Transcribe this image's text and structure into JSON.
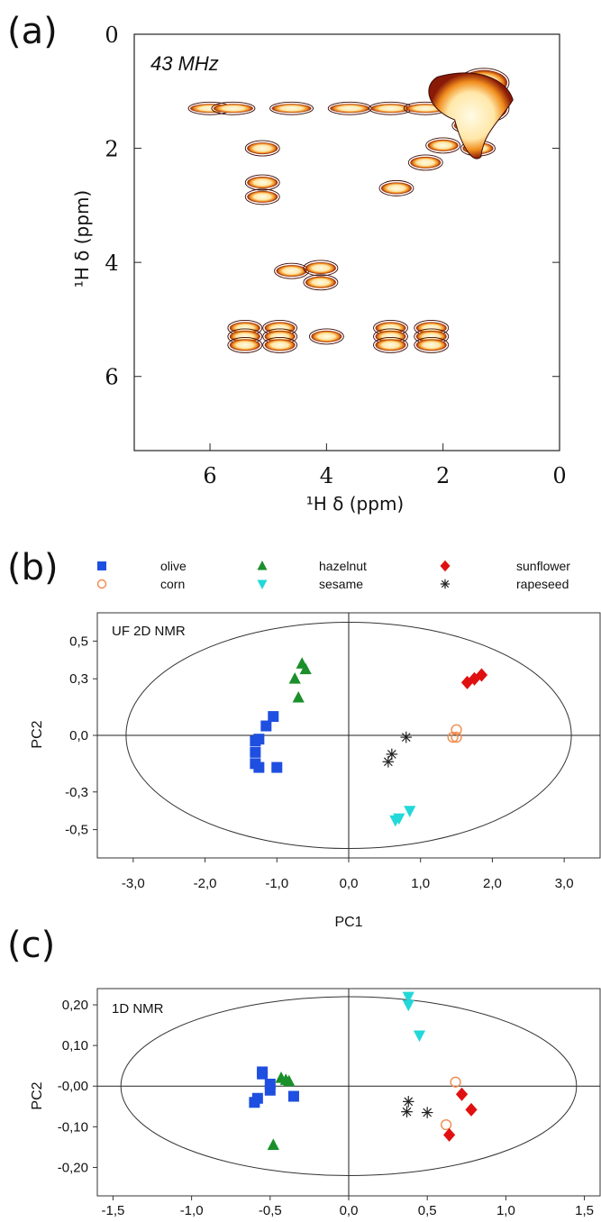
{
  "panel_labels": {
    "a": "(a)",
    "b": "(b)",
    "c": "(c)"
  },
  "legend": [
    {
      "label": "olive",
      "marker": "square",
      "color": "#1f4fe0"
    },
    {
      "label": "corn",
      "marker": "open-circle",
      "color": "#f08a4b"
    },
    {
      "label": "hazelnut",
      "marker": "triangle-up",
      "color": "#1a8f2a"
    },
    {
      "label": "sesame",
      "marker": "triangle-down",
      "color": "#22d8d8"
    },
    {
      "label": "sunflower",
      "marker": "diamond",
      "color": "#e01010"
    },
    {
      "label": "rapeseed",
      "marker": "asterisk",
      "color": "#222222"
    }
  ],
  "chart_data": [
    {
      "type": "heatmap",
      "annotation": "43 MHz",
      "xlabel": "¹H δ (ppm)",
      "ylabel": "¹H δ (ppm)",
      "xlim": [
        7.3,
        0
      ],
      "ylim": [
        7.3,
        0
      ],
      "xticks": [
        "6",
        "4",
        "2",
        "0"
      ],
      "yticks": [
        "0",
        "2",
        "4",
        "6"
      ],
      "peaks": [
        {
          "x": 6.0,
          "y": 1.3
        },
        {
          "x": 5.6,
          "y": 1.3
        },
        {
          "x": 4.6,
          "y": 1.3
        },
        {
          "x": 3.6,
          "y": 1.3
        },
        {
          "x": 2.9,
          "y": 1.3
        },
        {
          "x": 2.3,
          "y": 1.3
        },
        {
          "x": 1.3,
          "y": 1.3
        },
        {
          "x": 1.3,
          "y": 0.85
        },
        {
          "x": 1.6,
          "y": 1.1
        },
        {
          "x": 1.55,
          "y": 1.6
        },
        {
          "x": 1.4,
          "y": 2.0
        },
        {
          "x": 2.0,
          "y": 1.95
        },
        {
          "x": 2.3,
          "y": 2.25
        },
        {
          "x": 2.8,
          "y": 2.7
        },
        {
          "x": 5.1,
          "y": 2.0
        },
        {
          "x": 5.1,
          "y": 2.6
        },
        {
          "x": 5.1,
          "y": 2.85
        },
        {
          "x": 4.6,
          "y": 4.15
        },
        {
          "x": 4.1,
          "y": 4.1
        },
        {
          "x": 4.1,
          "y": 4.35
        },
        {
          "x": 5.4,
          "y": 5.15
        },
        {
          "x": 5.4,
          "y": 5.3
        },
        {
          "x": 5.4,
          "y": 5.45
        },
        {
          "x": 4.8,
          "y": 5.15
        },
        {
          "x": 4.8,
          "y": 5.3
        },
        {
          "x": 4.8,
          "y": 5.45
        },
        {
          "x": 4.0,
          "y": 5.3
        },
        {
          "x": 2.9,
          "y": 5.15
        },
        {
          "x": 2.9,
          "y": 5.3
        },
        {
          "x": 2.9,
          "y": 5.45
        },
        {
          "x": 2.2,
          "y": 5.15
        },
        {
          "x": 2.2,
          "y": 5.3
        },
        {
          "x": 2.2,
          "y": 5.45
        }
      ]
    },
    {
      "type": "scatter",
      "annotation": "UF 2D NMR",
      "xlabel": "PC1",
      "ylabel": "PC2",
      "xlim": [
        -3.5,
        3.5
      ],
      "ylim": [
        -0.65,
        0.65
      ],
      "xticks": [
        "-3,0",
        "-2,0",
        "-1,0",
        "0,0",
        "1,0",
        "2,0",
        "3,0"
      ],
      "yticks": [
        "0,5",
        "0,3",
        "0,0",
        "-0,3",
        "-0,5"
      ],
      "ellipse": {
        "rx": 3.1,
        "ry": 0.6
      },
      "series": [
        {
          "name": "olive",
          "points": [
            [
              -1.3,
              -0.03
            ],
            [
              -1.25,
              -0.02
            ],
            [
              -1.3,
              -0.09
            ],
            [
              -1.3,
              -0.15
            ],
            [
              -1.15,
              0.05
            ],
            [
              -1.05,
              0.1
            ],
            [
              -1.0,
              -0.17
            ],
            [
              -1.25,
              -0.17
            ]
          ]
        },
        {
          "name": "corn",
          "points": [
            [
              1.5,
              0.03
            ],
            [
              1.45,
              -0.01
            ],
            [
              1.5,
              -0.01
            ]
          ]
        },
        {
          "name": "hazelnut",
          "points": [
            [
              -0.75,
              0.3
            ],
            [
              -0.65,
              0.38
            ],
            [
              -0.6,
              0.35
            ],
            [
              -0.7,
              0.2
            ]
          ]
        },
        {
          "name": "sesame",
          "points": [
            [
              0.85,
              -0.4
            ],
            [
              0.7,
              -0.44
            ],
            [
              0.65,
              -0.45
            ]
          ]
        },
        {
          "name": "sunflower",
          "points": [
            [
              1.65,
              0.28
            ],
            [
              1.75,
              0.3
            ],
            [
              1.85,
              0.32
            ]
          ]
        },
        {
          "name": "rapeseed",
          "points": [
            [
              0.8,
              -0.01
            ],
            [
              0.6,
              -0.1
            ],
            [
              0.55,
              -0.14
            ]
          ]
        }
      ]
    },
    {
      "type": "scatter",
      "annotation": "1D NMR",
      "xlabel": "",
      "ylabel": "PC2",
      "xlim": [
        -1.6,
        1.6
      ],
      "ylim": [
        -0.27,
        0.24
      ],
      "xticks": [
        "-1,5",
        "-1,0",
        "-0,5",
        "0,0",
        "0,5",
        "1,0",
        "1,5"
      ],
      "yticks": [
        "0,20",
        "0,10",
        "-0,00",
        "-0,10",
        "-0,20"
      ],
      "ellipse": {
        "rx": 1.45,
        "ry": 0.22
      },
      "series": [
        {
          "name": "olive",
          "points": [
            [
              -0.55,
              0.035
            ],
            [
              -0.55,
              0.03
            ],
            [
              -0.5,
              0.005
            ],
            [
              -0.5,
              -0.01
            ],
            [
              -0.35,
              -0.025
            ],
            [
              -0.6,
              -0.04
            ],
            [
              -0.58,
              -0.03
            ]
          ]
        },
        {
          "name": "corn",
          "points": [
            [
              0.68,
              0.01
            ],
            [
              0.62,
              -0.095
            ]
          ]
        },
        {
          "name": "hazelnut",
          "points": [
            [
              -0.43,
              0.02
            ],
            [
              -0.4,
              0.015
            ],
            [
              -0.38,
              0.012
            ],
            [
              -0.48,
              -0.145
            ]
          ]
        },
        {
          "name": "sesame",
          "points": [
            [
              0.38,
              0.22
            ],
            [
              0.38,
              0.2
            ],
            [
              0.45,
              0.125
            ]
          ]
        },
        {
          "name": "sunflower",
          "points": [
            [
              0.72,
              -0.02
            ],
            [
              0.78,
              -0.058
            ],
            [
              0.64,
              -0.12
            ]
          ]
        },
        {
          "name": "rapeseed",
          "points": [
            [
              0.38,
              -0.038
            ],
            [
              0.37,
              -0.063
            ],
            [
              0.5,
              -0.065
            ]
          ]
        }
      ]
    }
  ]
}
